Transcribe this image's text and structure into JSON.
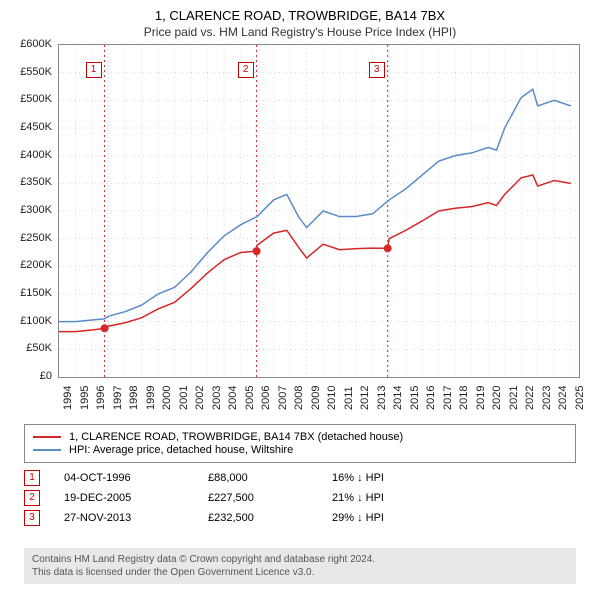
{
  "title_line1": "1, CLARENCE ROAD, TROWBRIDGE, BA14 7BX",
  "title_line2": "Price paid vs. HM Land Registry's House Price Index (HPI)",
  "chart": {
    "type": "line",
    "x_range": [
      1994,
      2025.5
    ],
    "y_range": [
      0,
      600000
    ],
    "y_ticks": [
      0,
      50000,
      100000,
      150000,
      200000,
      250000,
      300000,
      350000,
      400000,
      450000,
      500000,
      550000,
      600000
    ],
    "y_tick_labels": [
      "£0",
      "£50K",
      "£100K",
      "£150K",
      "£200K",
      "£250K",
      "£300K",
      "£350K",
      "£400K",
      "£450K",
      "£500K",
      "£550K",
      "£600K"
    ],
    "x_ticks": [
      1994,
      1995,
      1996,
      1997,
      1998,
      1999,
      2000,
      2001,
      2002,
      2003,
      2004,
      2005,
      2006,
      2007,
      2008,
      2009,
      2010,
      2011,
      2012,
      2013,
      2014,
      2015,
      2016,
      2017,
      2018,
      2019,
      2020,
      2021,
      2022,
      2023,
      2024,
      2025
    ],
    "grid_color": "#d8d8d8",
    "tick_color": "#999",
    "background_color": "#ffffff",
    "axis_font_size": 11,
    "series": [
      {
        "name": "hpi",
        "color": "#5b8cc7",
        "width": 1.5,
        "points": [
          [
            1994,
            100000
          ],
          [
            1995,
            100000
          ],
          [
            1996,
            103000
          ],
          [
            1996.75,
            105000
          ],
          [
            1997,
            110000
          ],
          [
            1998,
            118000
          ],
          [
            1999,
            130000
          ],
          [
            2000,
            150000
          ],
          [
            2001,
            162000
          ],
          [
            2002,
            190000
          ],
          [
            2003,
            225000
          ],
          [
            2004,
            255000
          ],
          [
            2005,
            275000
          ],
          [
            2006,
            290000
          ],
          [
            2007,
            320000
          ],
          [
            2007.8,
            330000
          ],
          [
            2008.5,
            290000
          ],
          [
            2009,
            270000
          ],
          [
            2010,
            300000
          ],
          [
            2011,
            290000
          ],
          [
            2012,
            290000
          ],
          [
            2013,
            295000
          ],
          [
            2014,
            320000
          ],
          [
            2015,
            340000
          ],
          [
            2016,
            365000
          ],
          [
            2017,
            390000
          ],
          [
            2018,
            400000
          ],
          [
            2019,
            405000
          ],
          [
            2020,
            415000
          ],
          [
            2020.5,
            410000
          ],
          [
            2021,
            450000
          ],
          [
            2022,
            505000
          ],
          [
            2022.7,
            520000
          ],
          [
            2023,
            490000
          ],
          [
            2024,
            500000
          ],
          [
            2025,
            490000
          ]
        ]
      },
      {
        "name": "property",
        "color": "#d62728",
        "width": 1.5,
        "points": [
          [
            1994,
            82000
          ],
          [
            1995,
            82000
          ],
          [
            1996,
            85000
          ],
          [
            1996.75,
            88000
          ],
          [
            1997,
            92000
          ],
          [
            1998,
            98000
          ],
          [
            1999,
            107000
          ],
          [
            2000,
            123000
          ],
          [
            2001,
            135000
          ],
          [
            2002,
            160000
          ],
          [
            2003,
            188000
          ],
          [
            2004,
            212000
          ],
          [
            2005,
            225000
          ],
          [
            2005.97,
            227500
          ],
          [
            2006,
            238000
          ],
          [
            2007,
            260000
          ],
          [
            2007.8,
            265000
          ],
          [
            2008.5,
            235000
          ],
          [
            2009,
            215000
          ],
          [
            2010,
            240000
          ],
          [
            2011,
            230000
          ],
          [
            2012,
            232000
          ],
          [
            2013,
            233000
          ],
          [
            2013.9,
            232500
          ],
          [
            2014,
            250000
          ],
          [
            2015,
            265000
          ],
          [
            2016,
            282000
          ],
          [
            2017,
            300000
          ],
          [
            2018,
            305000
          ],
          [
            2019,
            308000
          ],
          [
            2020,
            315000
          ],
          [
            2020.5,
            310000
          ],
          [
            2021,
            330000
          ],
          [
            2022,
            360000
          ],
          [
            2022.7,
            365000
          ],
          [
            2023,
            345000
          ],
          [
            2024,
            355000
          ],
          [
            2025,
            350000
          ]
        ]
      }
    ],
    "sale_markers": [
      {
        "n": "1",
        "x": 1996.76,
        "y": 88000
      },
      {
        "n": "2",
        "x": 2005.97,
        "y": 227500
      },
      {
        "n": "3",
        "x": 2013.91,
        "y": 232500
      }
    ],
    "marker_line_color": "#d62728",
    "marker_box_border": "#c00000",
    "dot_radius": 4
  },
  "legend": {
    "items": [
      {
        "color": "#d62728",
        "label": "1, CLARENCE ROAD, TROWBRIDGE, BA14 7BX (detached house)"
      },
      {
        "color": "#5b8cc7",
        "label": "HPI: Average price, detached house, Wiltshire"
      }
    ]
  },
  "sales": [
    {
      "n": "1",
      "date": "04-OCT-1996",
      "price": "£88,000",
      "delta": "16% ↓ HPI"
    },
    {
      "n": "2",
      "date": "19-DEC-2005",
      "price": "£227,500",
      "delta": "21% ↓ HPI"
    },
    {
      "n": "3",
      "date": "27-NOV-2013",
      "price": "£232,500",
      "delta": "29% ↓ HPI"
    }
  ],
  "attribution": {
    "line1": "Contains HM Land Registry data © Crown copyright and database right 2024.",
    "line2": "This data is licensed under the Open Government Licence v3.0."
  }
}
